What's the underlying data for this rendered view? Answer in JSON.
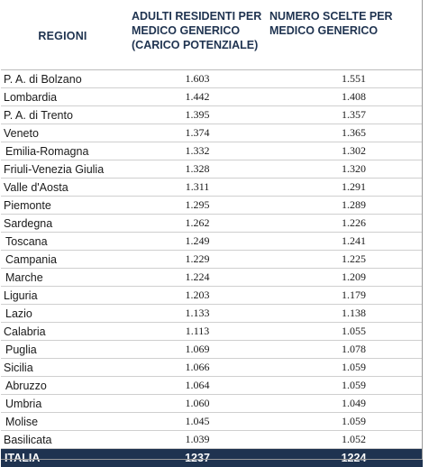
{
  "header": {
    "regioni": "REGIONI",
    "col2_line1": "ADULTI RESIDENTI PER",
    "col2_line2": "MEDICO GENERICO",
    "col2_line3": "(CARICO POTENZIALE)",
    "col3_line1": "NUMERO SCELTE  PER",
    "col3_line2": "MEDICO GENERICO"
  },
  "rows": [
    {
      "region": "P. A. di Bolzano",
      "adulti": "1.603",
      "scelte": "1.551"
    },
    {
      "region": "Lombardia",
      "adulti": "1.442",
      "scelte": "1.408"
    },
    {
      "region": "P. A. di Trento",
      "adulti": "1.395",
      "scelte": "1.357"
    },
    {
      "region": "Veneto",
      "adulti": "1.374",
      "scelte": "1.365"
    },
    {
      "region": "Emilia-Romagna",
      "adulti": "1.332",
      "scelte": "1.302"
    },
    {
      "region": "Friuli-Venezia Giulia",
      "adulti": "1.328",
      "scelte": "1.320"
    },
    {
      "region": "Valle d'Aosta",
      "adulti": "1.311",
      "scelte": "1.291"
    },
    {
      "region": "Piemonte",
      "adulti": "1.295",
      "scelte": "1.289"
    },
    {
      "region": "Sardegna",
      "adulti": "1.262",
      "scelte": "1.226"
    },
    {
      "region": "Toscana",
      "adulti": "1.249",
      "scelte": "1.241"
    },
    {
      "region": "Campania",
      "adulti": "1.229",
      "scelte": "1.225"
    },
    {
      "region": "Marche",
      "adulti": "1.224",
      "scelte": "1.209"
    },
    {
      "region": "Liguria",
      "adulti": "1.203",
      "scelte": "1.179"
    },
    {
      "region": "Lazio",
      "adulti": "1.133",
      "scelte": "1.138"
    },
    {
      "region": "Calabria",
      "adulti": "1.113",
      "scelte": "1.055"
    },
    {
      "region": "Puglia",
      "adulti": "1.069",
      "scelte": "1.078"
    },
    {
      "region": "Sicilia",
      "adulti": "1.066",
      "scelte": "1.059"
    },
    {
      "region": "Abruzzo",
      "adulti": "1.064",
      "scelte": "1.059"
    },
    {
      "region": "Umbria",
      "adulti": "1.060",
      "scelte": "1.049"
    },
    {
      "region": "Molise",
      "adulti": "1.045",
      "scelte": "1.059"
    },
    {
      "region": "Basilicata",
      "adulti": "1.039",
      "scelte": "1.052"
    }
  ],
  "total": {
    "region": "ITALIA",
    "adulti": "1237",
    "scelte": "1224"
  },
  "colors": {
    "header_text": "#1f3350",
    "total_bg": "#1f3350",
    "total_text": "#ffffff"
  }
}
